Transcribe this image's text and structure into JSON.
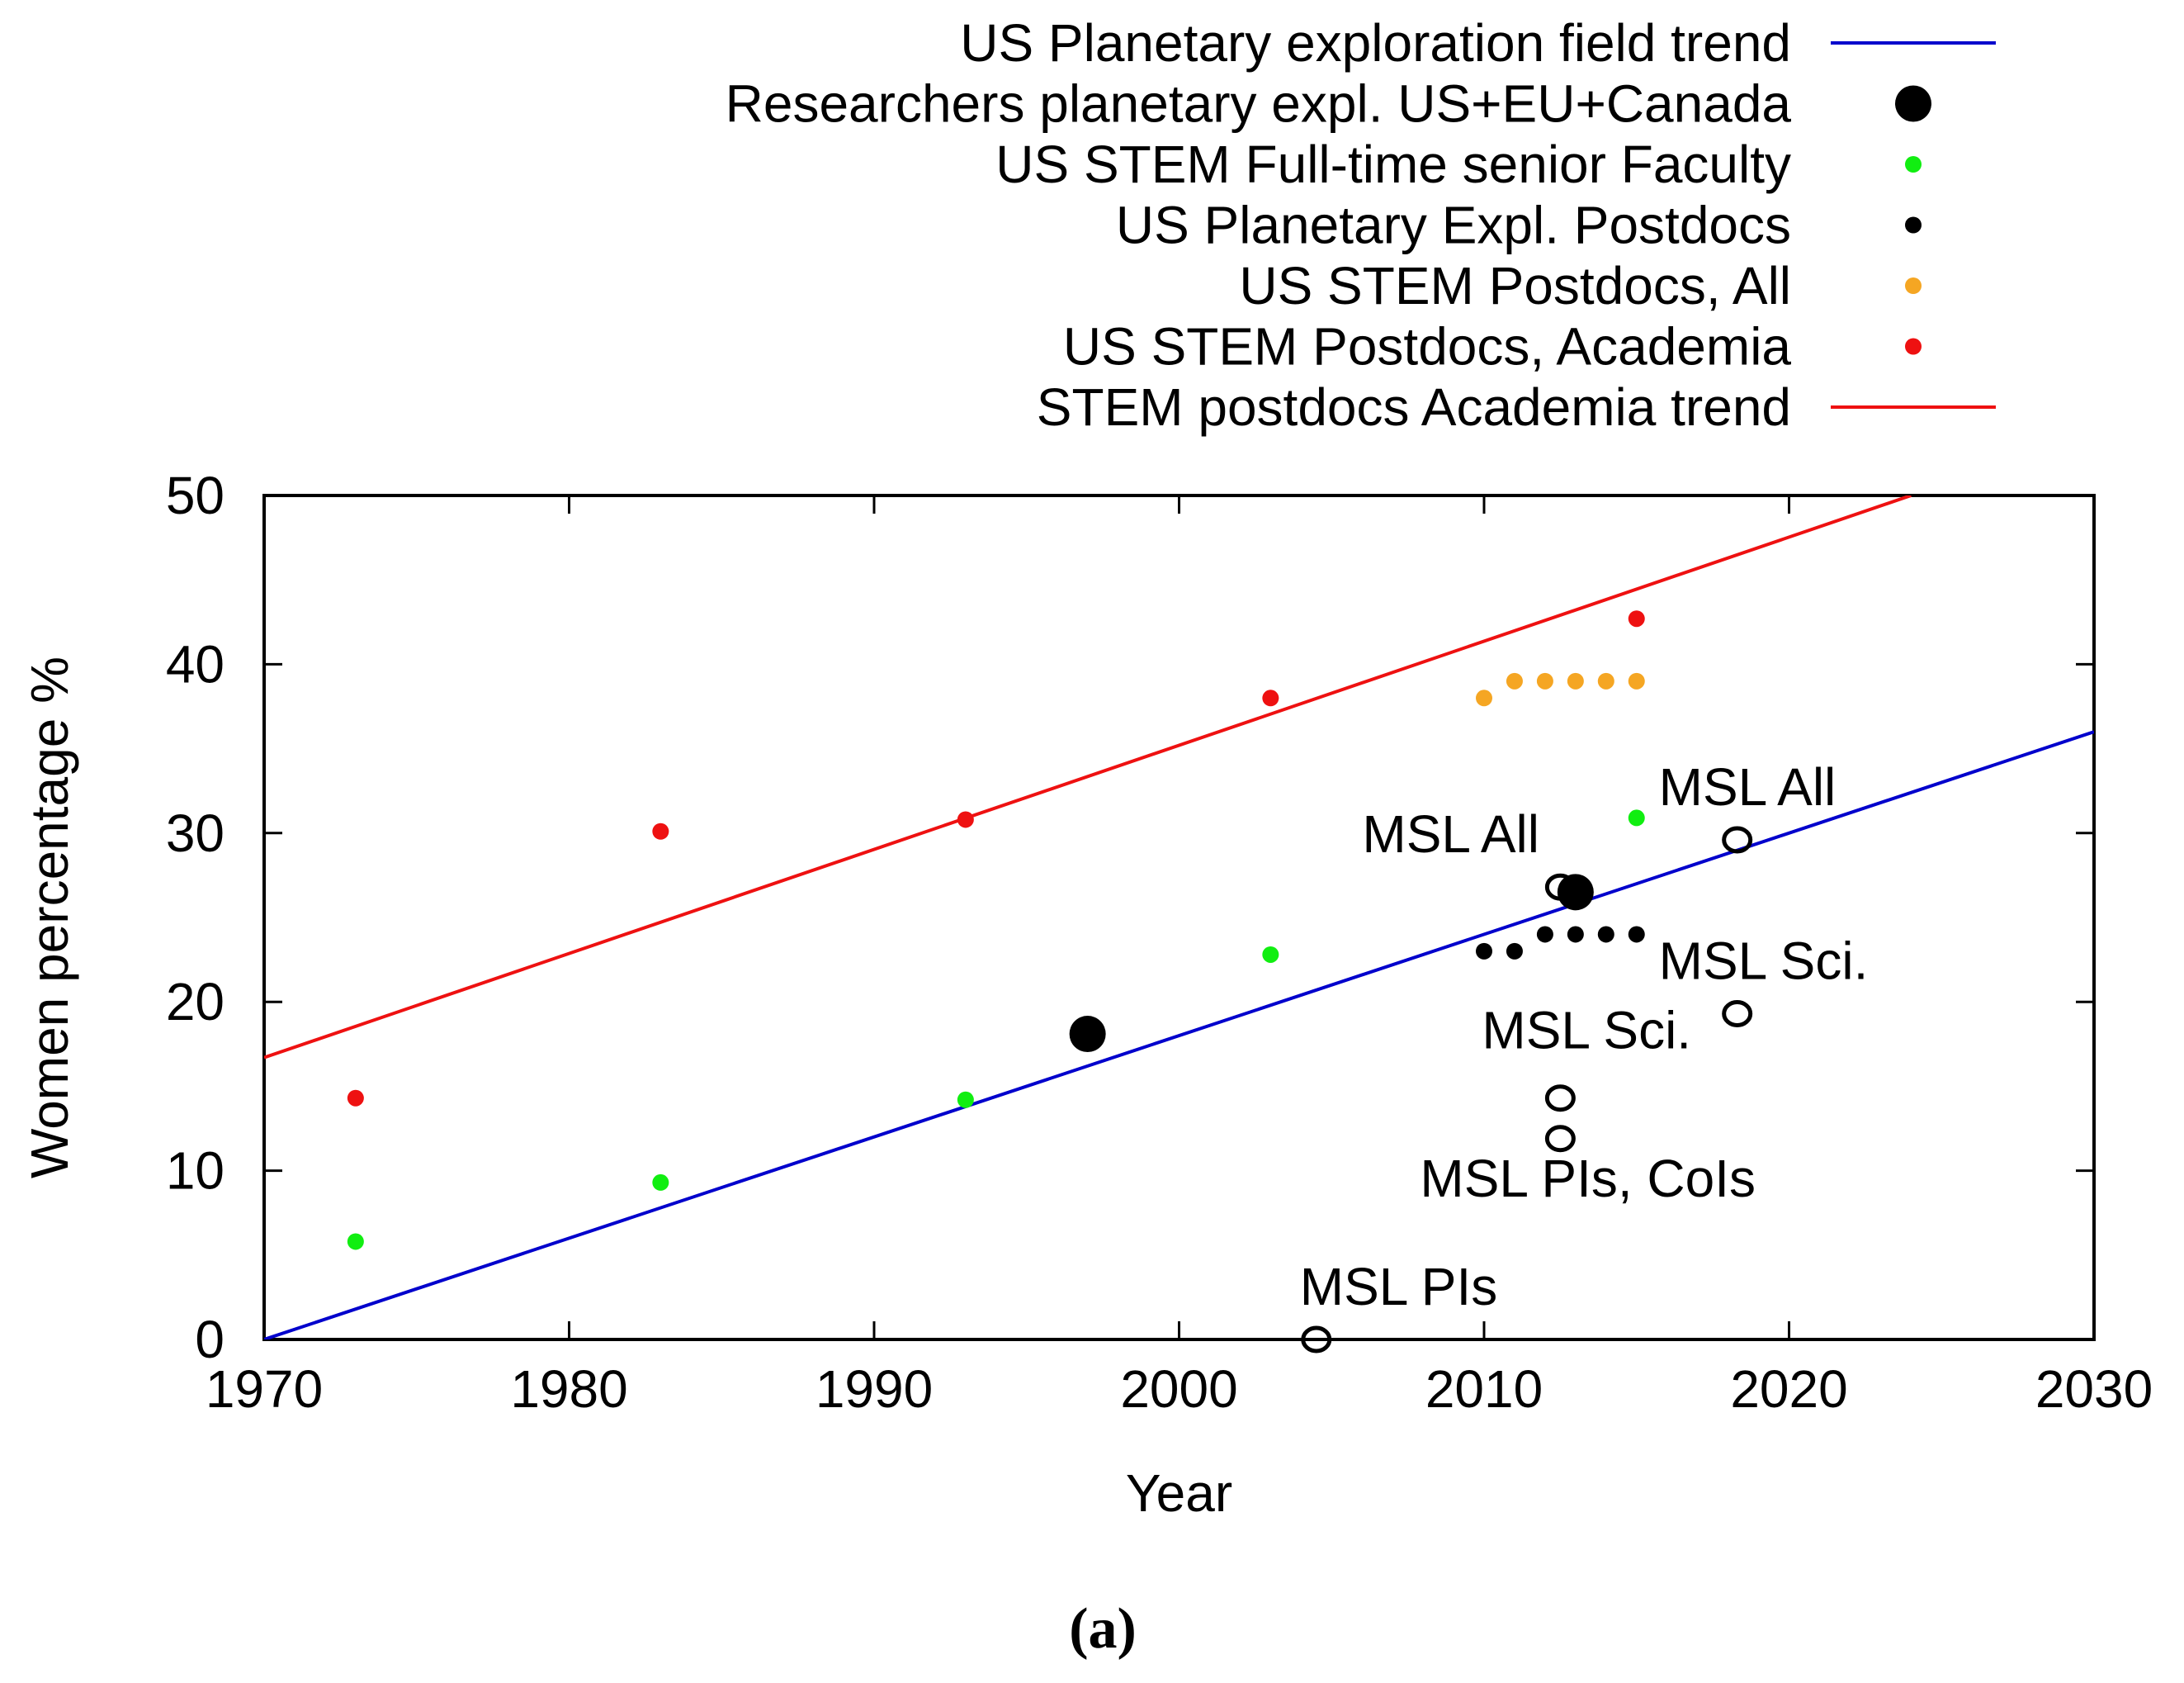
{
  "chart_data": {
    "type": "scatter",
    "xlabel": "Year",
    "ylabel": "Women percentage %",
    "caption": "(a)",
    "xlim": [
      1970,
      2030
    ],
    "ylim": [
      0,
      50
    ],
    "xticks": [
      1970,
      1980,
      1990,
      2000,
      2010,
      2020,
      2030
    ],
    "yticks": [
      0,
      10,
      20,
      30,
      40,
      50
    ],
    "legend_position": "top-right, above plot",
    "trends": [
      {
        "name": "US Planetary exploration field trend",
        "color": "#0000cc",
        "x": [
          1970,
          2030
        ],
        "y": [
          0,
          36
        ]
      },
      {
        "name": "STEM postdocs Academia trend",
        "color": "#ee1111",
        "x": [
          1970,
          2024
        ],
        "y": [
          16.7,
          50
        ]
      }
    ],
    "series": [
      {
        "name": "Researchers planetary expl. US+EU+Canada",
        "color": "#000000",
        "marker": "large",
        "points": [
          [
            1997,
            18.1
          ],
          [
            2013,
            26.5
          ]
        ]
      },
      {
        "name": "US STEM Full-time senior Faculty",
        "color": "#11ee11",
        "marker": "small",
        "points": [
          [
            1973,
            5.8
          ],
          [
            1983,
            9.3
          ],
          [
            1993,
            14.2
          ],
          [
            2003,
            22.8
          ],
          [
            2015,
            30.9
          ]
        ]
      },
      {
        "name": "US Planetary Expl. Postdocs",
        "color": "#000000",
        "marker": "small",
        "points": [
          [
            2010,
            23
          ],
          [
            2011,
            23
          ],
          [
            2012,
            24
          ],
          [
            2013,
            24
          ],
          [
            2014,
            24
          ],
          [
            2015,
            24
          ]
        ]
      },
      {
        "name": "US STEM Postdocs, All",
        "color": "#f5a623",
        "marker": "small",
        "points": [
          [
            2010,
            38
          ],
          [
            2011,
            39
          ],
          [
            2012,
            39
          ],
          [
            2013,
            39
          ],
          [
            2014,
            39
          ],
          [
            2015,
            39
          ]
        ]
      },
      {
        "name": "US STEM Postdocs, Academia",
        "color": "#ee1111",
        "marker": "small",
        "points": [
          [
            1973,
            14.3
          ],
          [
            1983,
            30.1
          ],
          [
            1993,
            30.8
          ],
          [
            2003,
            38.0
          ],
          [
            2015,
            42.7
          ]
        ]
      }
    ],
    "legend_order": [
      {
        "kind": "trend",
        "index": 0
      },
      {
        "kind": "series",
        "index": 0
      },
      {
        "kind": "series",
        "index": 1
      },
      {
        "kind": "series",
        "index": 2
      },
      {
        "kind": "series",
        "index": 3
      },
      {
        "kind": "series",
        "index": 4
      },
      {
        "kind": "trend",
        "index": 1
      }
    ],
    "annotations": [
      {
        "marker": "o",
        "x": 2012.5,
        "y": 26.8,
        "label": "MSL All"
      },
      {
        "marker": "o",
        "x": 2018.3,
        "y": 29.6,
        "label": "MSL All"
      },
      {
        "marker": "o",
        "x": 2018.3,
        "y": 19.3,
        "label": "MSL Sci."
      },
      {
        "marker": "o",
        "x": 2012.5,
        "y": 14.3,
        "label": "MSL Sci."
      },
      {
        "marker": "o",
        "x": 2012.5,
        "y": 11.9,
        "label": "MSL PIs, CoIs"
      },
      {
        "marker": "o",
        "x": 2004.5,
        "y": 0,
        "label": "MSL PIs"
      }
    ]
  }
}
